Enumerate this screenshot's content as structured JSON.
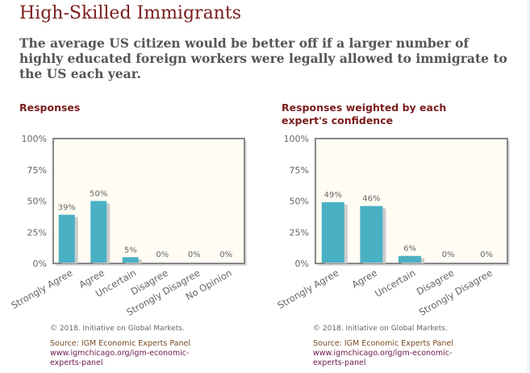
{
  "title": "High-Skilled Immigrants",
  "question": "The average US citizen would be better off if a larger number of highly educated foreign workers were legally allowed to immigrate to the US each year.",
  "colors": {
    "bar": "#4ab0c4",
    "plot_bg": "#fffcf3",
    "frame": "#888888",
    "title": "#7a1c1c"
  },
  "chart_data": [
    {
      "type": "bar",
      "title": "Responses",
      "categories": [
        "Strongly Agree",
        "Agree",
        "Uncertain",
        "Disagree",
        "Strongly Disagree",
        "No Opinion"
      ],
      "values": [
        39,
        50,
        5,
        0,
        0,
        0
      ],
      "data_labels": [
        "39%",
        "50%",
        "5%",
        "0%",
        "0%",
        "0%"
      ],
      "ylim": [
        0,
        100
      ],
      "yticks": [
        "0%",
        "25%",
        "50%",
        "75%",
        "100%"
      ],
      "grid": false,
      "copyright": "© 2018. Initiative on Global Markets.",
      "source": "Source: IGM Economic Experts Panel",
      "url": "www.igmchicago.org/igm-economic-experts-panel"
    },
    {
      "type": "bar",
      "title": "Responses weighted by each expert's confidence",
      "categories": [
        "Strongly Agree",
        "Agree",
        "Uncertain",
        "Disagree",
        "Strongly Disagree"
      ],
      "values": [
        49,
        46,
        6,
        0,
        0
      ],
      "data_labels": [
        "49%",
        "46%",
        "6%",
        "0%",
        "0%"
      ],
      "ylim": [
        0,
        100
      ],
      "yticks": [
        "0%",
        "25%",
        "50%",
        "75%",
        "100%"
      ],
      "grid": false,
      "copyright": "© 2018. Initiative on Global Markets.",
      "source": "Source: IGM Economic Experts Panel",
      "url": "www.igmchicago.org/igm-economic-experts-panel"
    }
  ]
}
